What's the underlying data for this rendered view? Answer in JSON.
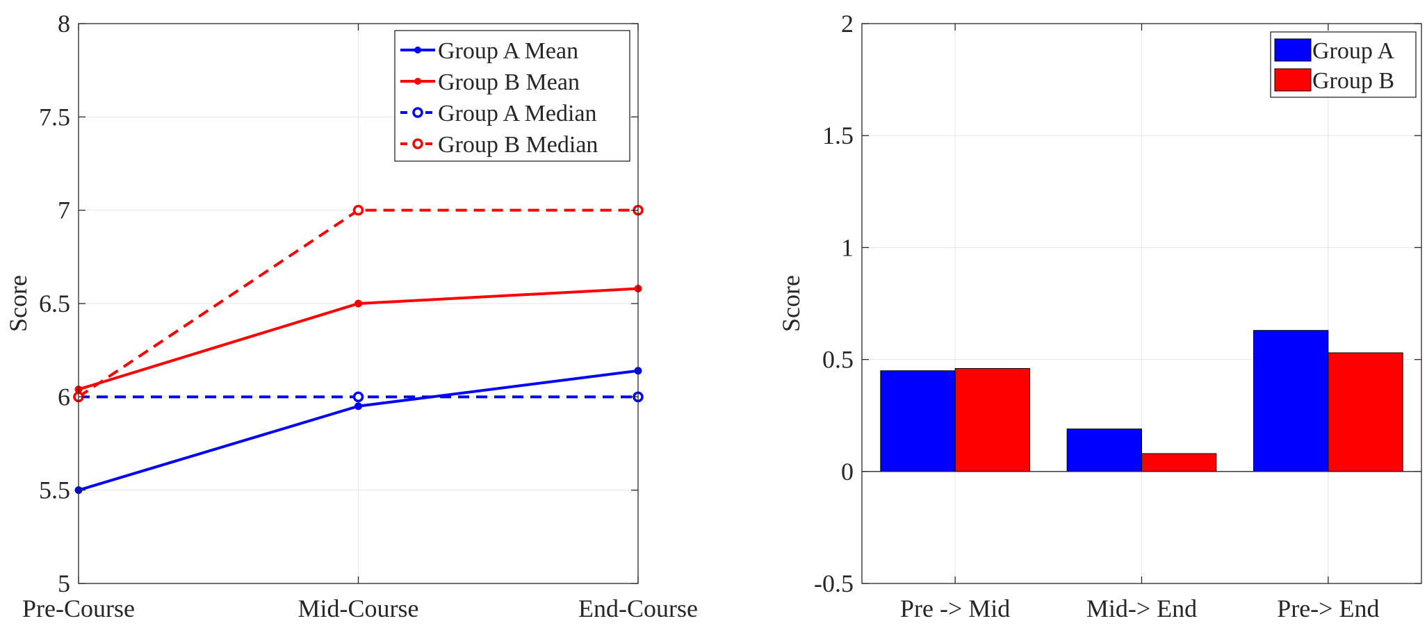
{
  "chart_data": [
    {
      "type": "line",
      "xlabel": "",
      "ylabel": "Score",
      "categories": [
        "Pre-Course",
        "Mid-Course",
        "End-Course"
      ],
      "ylim": [
        5,
        8
      ],
      "yticks": [
        "5",
        "5.5",
        "6",
        "6.5",
        "7",
        "7.5",
        "8"
      ],
      "yticks_values": [
        5,
        5.5,
        6,
        6.5,
        7,
        7.5,
        8
      ],
      "grid": true,
      "legend_position": "top-right",
      "series": [
        {
          "name": "Group A Mean",
          "values": [
            5.5,
            5.95,
            6.14
          ],
          "color": "#0000ff",
          "style": "solid",
          "marker": "dot"
        },
        {
          "name": "Group B Mean",
          "values": [
            6.04,
            6.5,
            6.58
          ],
          "color": "#ff0000",
          "style": "solid",
          "marker": "dot"
        },
        {
          "name": "Group A Median",
          "values": [
            6,
            6,
            6
          ],
          "color": "#0000ff",
          "style": "dashed",
          "marker": "circle"
        },
        {
          "name": "Group B Median",
          "values": [
            6,
            7,
            7
          ],
          "color": "#ff0000",
          "style": "dashed",
          "marker": "circle"
        }
      ]
    },
    {
      "type": "bar",
      "xlabel": "",
      "ylabel": "Score",
      "categories": [
        "Pre -> Mid",
        "Mid-> End",
        "Pre-> End"
      ],
      "ylim": [
        -0.5,
        2
      ],
      "yticks": [
        "-0.5",
        "0",
        "0.5",
        "1",
        "1.5",
        "2"
      ],
      "yticks_values": [
        -0.5,
        0,
        0.5,
        1,
        1.5,
        2
      ],
      "grid": true,
      "legend_position": "top-right",
      "series": [
        {
          "name": "Group A",
          "values": [
            0.45,
            0.19,
            0.63
          ],
          "color": "#0000ff"
        },
        {
          "name": "Group B",
          "values": [
            0.46,
            0.08,
            0.53
          ],
          "color": "#ff0000"
        }
      ]
    }
  ]
}
